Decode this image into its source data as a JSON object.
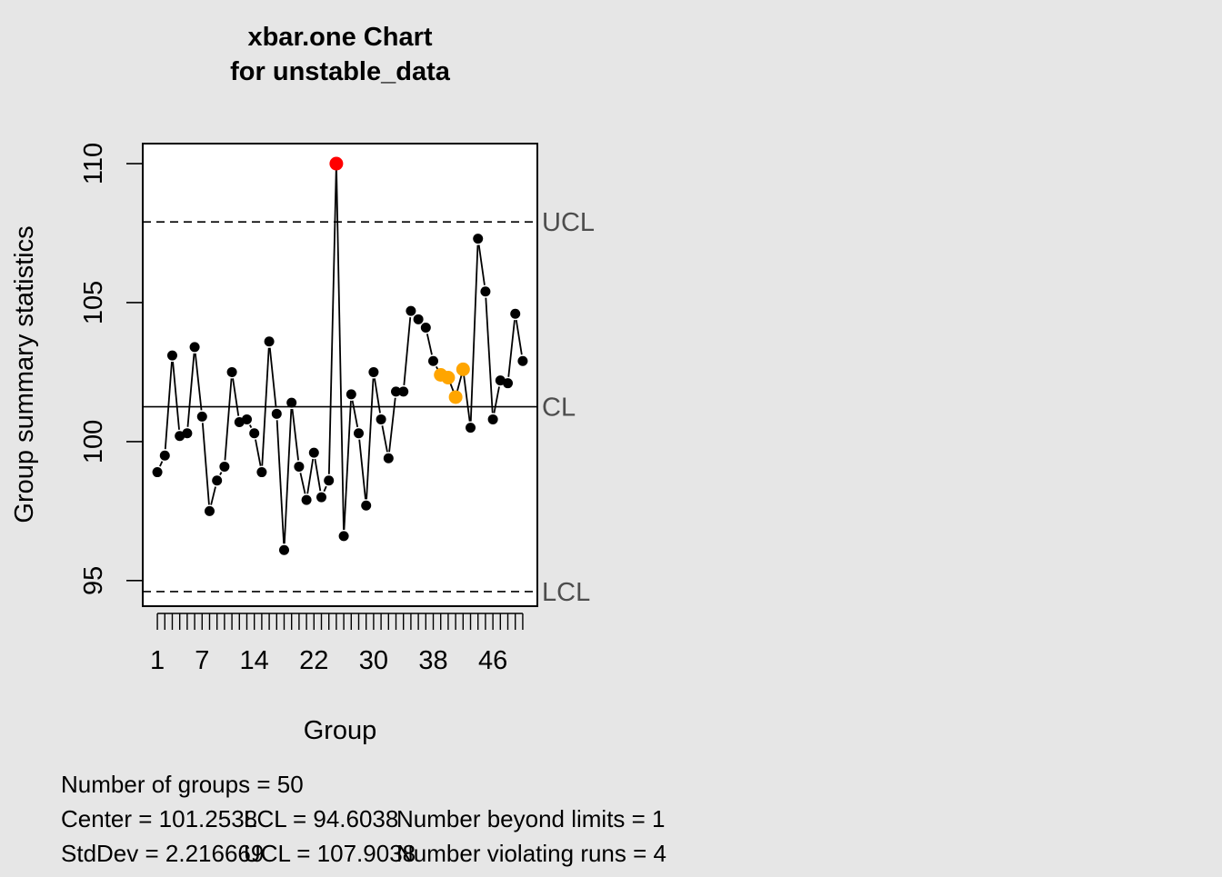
{
  "chart_data": {
    "type": "line",
    "title": "xbar.one Chart",
    "subtitle": "for unstable_data",
    "xlabel": "Group",
    "ylabel": "Group summary statistics",
    "x_tick_labels": [
      "1",
      "7",
      "14",
      "22",
      "30",
      "38",
      "46"
    ],
    "x_tick_positions": [
      1,
      7,
      14,
      22,
      30,
      38,
      46
    ],
    "y_ticks": [
      95,
      100,
      105,
      110
    ],
    "ylim": [
      94.08,
      110.72
    ],
    "xlim": [
      -0.96,
      51.96
    ],
    "grid": false,
    "x": [
      1,
      2,
      3,
      4,
      5,
      6,
      7,
      8,
      9,
      10,
      11,
      12,
      13,
      14,
      15,
      16,
      17,
      18,
      19,
      20,
      21,
      22,
      23,
      24,
      25,
      26,
      27,
      28,
      29,
      30,
      31,
      32,
      33,
      34,
      35,
      36,
      37,
      38,
      39,
      40,
      41,
      42,
      43,
      44,
      45,
      46,
      47,
      48,
      49,
      50
    ],
    "values": [
      98.9,
      99.5,
      103.1,
      100.2,
      100.3,
      103.4,
      100.9,
      97.5,
      98.6,
      99.1,
      102.5,
      100.7,
      100.8,
      100.3,
      98.9,
      103.6,
      101.0,
      96.1,
      101.4,
      99.1,
      97.9,
      99.6,
      98.0,
      98.6,
      110.0,
      96.6,
      101.7,
      100.3,
      97.7,
      102.5,
      100.8,
      99.4,
      101.8,
      101.8,
      104.7,
      104.4,
      104.1,
      102.9,
      102.4,
      102.3,
      101.6,
      102.6,
      100.5,
      107.3,
      105.4,
      100.8,
      102.2,
      102.1,
      104.6,
      102.9
    ],
    "point_status": [
      "normal",
      "normal",
      "normal",
      "normal",
      "normal",
      "normal",
      "normal",
      "normal",
      "normal",
      "normal",
      "normal",
      "normal",
      "normal",
      "normal",
      "normal",
      "normal",
      "normal",
      "normal",
      "normal",
      "normal",
      "normal",
      "normal",
      "normal",
      "normal",
      "beyond",
      "normal",
      "normal",
      "normal",
      "normal",
      "normal",
      "normal",
      "normal",
      "normal",
      "normal",
      "normal",
      "normal",
      "normal",
      "normal",
      "violating",
      "violating",
      "violating",
      "violating",
      "normal",
      "normal",
      "normal",
      "normal",
      "normal",
      "normal",
      "normal",
      "normal"
    ],
    "center_line": 101.2538,
    "lcl": 94.6038,
    "ucl": 107.9038,
    "line_labels": {
      "ucl": "UCL",
      "cl": "CL",
      "lcl": "LCL"
    },
    "colors": {
      "normal": "#000000",
      "beyond": "#ff0000",
      "violating": "#ffa500",
      "background": "#e6e6e6",
      "plot_background": "#ffffff",
      "limit_label": "#4d4d4d"
    },
    "stats": {
      "groups_line": "Number of groups = 50",
      "center": "Center = 101.2538",
      "stddev": "StdDev = 2.216669",
      "lcl": "LCL = 94.6038",
      "ucl": "UCL = 107.9038",
      "beyond": "Number beyond limits = 1",
      "violating": "Number violating runs = 4"
    }
  }
}
